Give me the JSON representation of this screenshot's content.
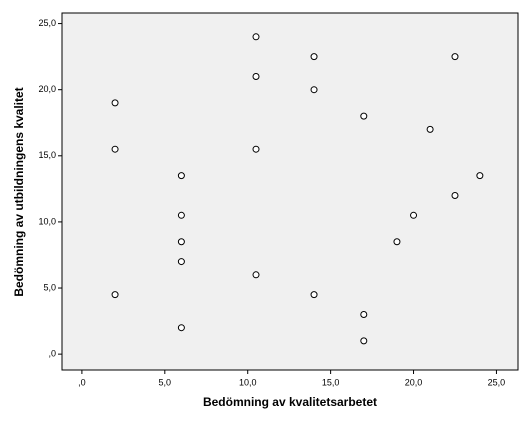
{
  "chart_data": {
    "type": "scatter",
    "x_label": "Bedömning av kvalitetsarbetet",
    "y_label": "Bedömning av utbildningens kvalitet",
    "x": [
      2,
      2,
      2,
      6,
      6,
      6,
      6,
      6,
      10.5,
      10.5,
      10.5,
      10.5,
      14,
      14,
      14,
      17,
      17,
      17,
      22.5,
      21,
      24,
      22.5,
      20,
      19
    ],
    "y": [
      19,
      15.5,
      4.5,
      13.5,
      10.5,
      8.5,
      7,
      2,
      24,
      21,
      15.5,
      6,
      22.5,
      20,
      4.5,
      18,
      3,
      1,
      22.5,
      17,
      13.5,
      12,
      10.5,
      8.5
    ],
    "color": "#000000",
    "background": "#f0f0f0",
    "xlim": [
      -1.2,
      26.3
    ],
    "ylim": [
      -1.2,
      25.8
    ],
    "xticks": [
      {
        "value": 0,
        "label": ",0"
      },
      {
        "value": 5,
        "label": "5,0"
      },
      {
        "value": 10,
        "label": "10,0"
      },
      {
        "value": 15,
        "label": "15,0"
      },
      {
        "value": 20,
        "label": "20,0"
      },
      {
        "value": 25,
        "label": "25,0"
      }
    ],
    "yticks": [
      {
        "value": 0,
        "label": ",0"
      },
      {
        "value": 5,
        "label": "5,0"
      },
      {
        "value": 10,
        "label": "10,0"
      },
      {
        "value": 15,
        "label": "15,0"
      },
      {
        "value": 20,
        "label": "20,0"
      },
      {
        "value": 25,
        "label": "25,0"
      }
    ]
  }
}
